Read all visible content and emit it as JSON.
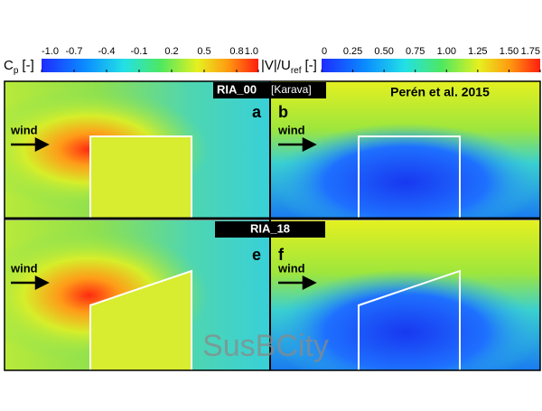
{
  "colorbars": [
    {
      "label": {
        "main": "C",
        "sub": "p",
        "unit": "[-]"
      },
      "lim": [
        -1,
        1
      ],
      "ticks": [
        {
          "value": -1,
          "label": "-1.0"
        },
        -0.7,
        -0.4,
        -0.1,
        0.2,
        0.5,
        0.8,
        {
          "value": 1,
          "label": "1.0"
        }
      ]
    },
    {
      "label": {
        "main": "|V|/U",
        "sub": "ref",
        "unit": "[-]"
      },
      "lim": [
        0,
        1.75
      ],
      "ticks": [
        0,
        0.25,
        {
          "value": 0.5,
          "label": "0.50"
        },
        0.75,
        {
          "value": 1,
          "label": "1.00"
        },
        1.25,
        {
          "value": 1.5,
          "label": "1.50"
        },
        1.75
      ]
    }
  ],
  "rows": [
    {
      "title": "RIA_00",
      "title_note": "[Karava]",
      "reference": "Perén et al. 2015",
      "panels": [
        {
          "letter": "a",
          "wind": "wind"
        },
        {
          "letter": "b",
          "wind": "wind"
        }
      ]
    },
    {
      "title": "RIA_18",
      "panels": [
        {
          "letter": "e",
          "wind": "wind"
        },
        {
          "letter": "f",
          "wind": "wind"
        }
      ]
    }
  ],
  "watermark": "SusBCity"
}
